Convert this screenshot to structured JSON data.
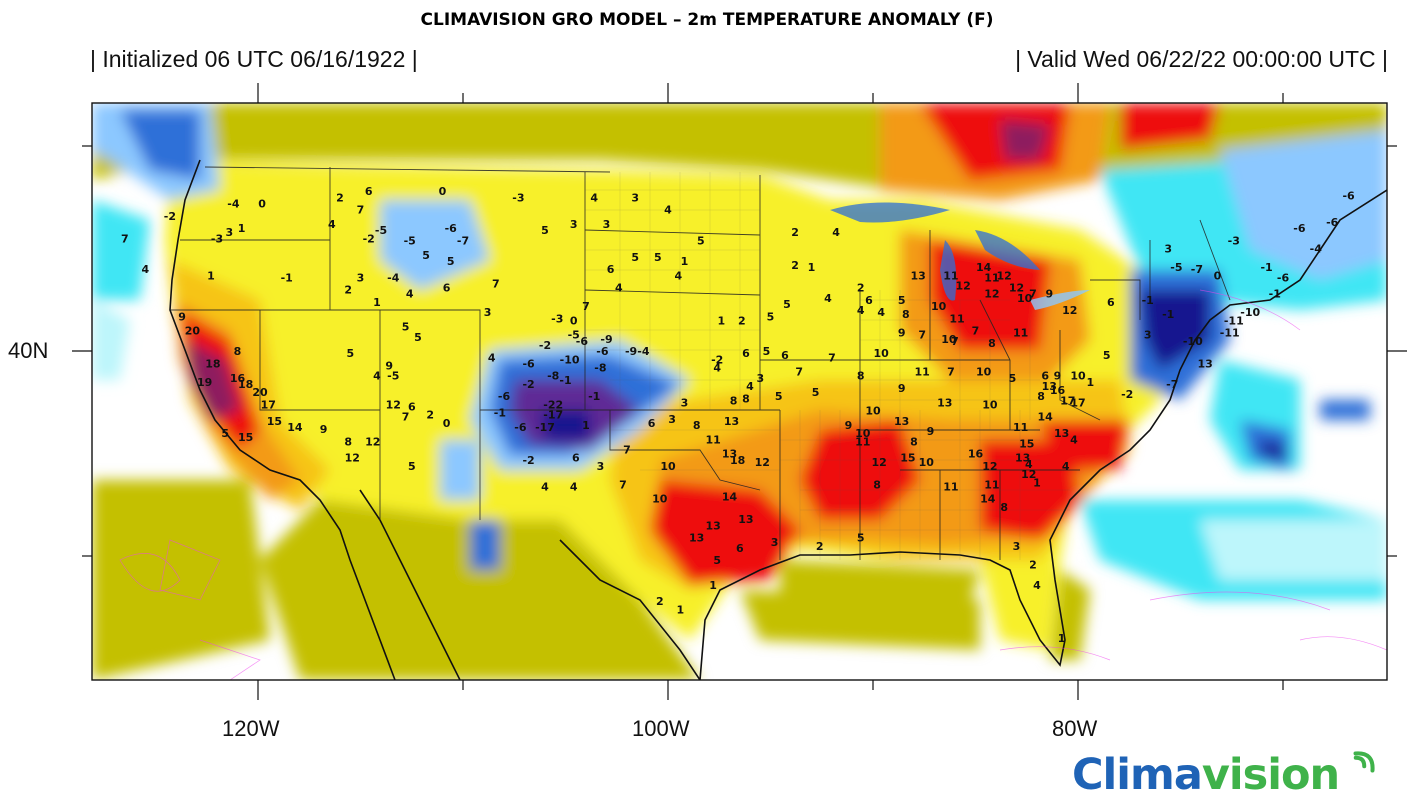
{
  "title": "CLIMAVISION GRO MODEL – 2m TEMPERATURE ANOMALY (F)",
  "header": {
    "initialized": "| Initialized 06 UTC 06/16/1922 |",
    "valid": "| Valid Wed 06/22/22 00:00:00 UTC |"
  },
  "axes": {
    "x_ticks": [
      "120W",
      "100W",
      "80W"
    ],
    "y_ticks": [
      "40N"
    ]
  },
  "logo": {
    "part1": "Clima",
    "part2": "vision"
  },
  "colors": {
    "deep_blue": "#13128f",
    "purple": "#5f2b96",
    "blue": "#2e6fd8",
    "light_blue": "#8cc8ff",
    "cyan": "#3fe6f4",
    "pale_cyan": "#bdf6fb",
    "olive": "#c4c000",
    "yellow": "#f7f02a",
    "gold": "#f6c419",
    "orange": "#f39a14",
    "red": "#ee1111",
    "dark_red": "#8e1f5e",
    "logo_blue": "#1f63b6",
    "logo_green": "#3fb24a"
  },
  "anomaly_labels": [
    {
      "t": "2",
      "lon": -116,
      "lat": 47.3
    },
    {
      "t": "6",
      "lon": -114.6,
      "lat": 47.6
    },
    {
      "t": "0",
      "lon": -111,
      "lat": 47.6
    },
    {
      "t": "-3",
      "lon": -107.3,
      "lat": 47.3
    },
    {
      "t": "4",
      "lon": -103.6,
      "lat": 47.3
    },
    {
      "t": "3",
      "lon": -101.6,
      "lat": 47.3
    },
    {
      "t": "-4",
      "lon": -121.2,
      "lat": 47
    },
    {
      "t": "0",
      "lon": -119.8,
      "lat": 47
    },
    {
      "t": "-2",
      "lon": -124.3,
      "lat": 46.4
    },
    {
      "t": "7",
      "lon": -115,
      "lat": 46.7
    },
    {
      "t": "4",
      "lon": -116.4,
      "lat": 46
    },
    {
      "t": "-5",
      "lon": -114,
      "lat": 45.7
    },
    {
      "t": "-6",
      "lon": -110.6,
      "lat": 45.8
    },
    {
      "t": "-7",
      "lon": -110,
      "lat": 45.2
    },
    {
      "t": "5",
      "lon": -106,
      "lat": 45.7
    },
    {
      "t": "3",
      "lon": -104.6,
      "lat": 46
    },
    {
      "t": "3",
      "lon": -103,
      "lat": 46
    },
    {
      "t": "4",
      "lon": -100,
      "lat": 46.7
    },
    {
      "t": "5",
      "lon": -98.4,
      "lat": 45.2
    },
    {
      "t": "-3",
      "lon": -122,
      "lat": 45.3
    },
    {
      "t": "3",
      "lon": -121.4,
      "lat": 45.6
    },
    {
      "t": "1",
      "lon": -120.8,
      "lat": 45.8
    },
    {
      "t": "-2",
      "lon": -114.6,
      "lat": 45.3
    },
    {
      "t": "-5",
      "lon": -112.6,
      "lat": 45.2
    },
    {
      "t": "7",
      "lon": -126.5,
      "lat": 45.3
    },
    {
      "t": "4",
      "lon": -125.5,
      "lat": 43.8
    },
    {
      "t": "1",
      "lon": -122.3,
      "lat": 43.5
    },
    {
      "t": "-1",
      "lon": -118.6,
      "lat": 43.4
    },
    {
      "t": "3",
      "lon": -115,
      "lat": 43.4
    },
    {
      "t": "-4",
      "lon": -113.4,
      "lat": 43.4
    },
    {
      "t": "5",
      "lon": -111.8,
      "lat": 44.5
    },
    {
      "t": "5",
      "lon": -110.6,
      "lat": 44.2
    },
    {
      "t": "6",
      "lon": -110.8,
      "lat": 42.9
    },
    {
      "t": "7",
      "lon": -108.4,
      "lat": 43.1
    },
    {
      "t": "2",
      "lon": -115.6,
      "lat": 42.8
    },
    {
      "t": "1",
      "lon": -114.2,
      "lat": 42.2
    },
    {
      "t": "4",
      "lon": -112.6,
      "lat": 42.6
    },
    {
      "t": "6",
      "lon": -102.8,
      "lat": 43.8
    },
    {
      "t": "5",
      "lon": -101.6,
      "lat": 44.4
    },
    {
      "t": "5",
      "lon": -100.5,
      "lat": 44.4
    },
    {
      "t": "1",
      "lon": -99.2,
      "lat": 44.2
    },
    {
      "t": "4",
      "lon": -99.5,
      "lat": 43.5
    },
    {
      "t": "4",
      "lon": -102.4,
      "lat": 42.9
    },
    {
      "t": "2",
      "lon": -93.8,
      "lat": 45.6
    },
    {
      "t": "4",
      "lon": -91.8,
      "lat": 45.6
    },
    {
      "t": "2",
      "lon": -93.8,
      "lat": 44
    },
    {
      "t": "1",
      "lon": -93,
      "lat": 43.9
    },
    {
      "t": "5",
      "lon": -88.6,
      "lat": 42.3
    },
    {
      "t": "5",
      "lon": -94.2,
      "lat": 42.1
    },
    {
      "t": "4",
      "lon": -92.2,
      "lat": 42.4
    },
    {
      "t": "2",
      "lon": -90.6,
      "lat": 42.9
    },
    {
      "t": "6",
      "lon": -90.2,
      "lat": 42.3
    },
    {
      "t": "4",
      "lon": -90.6,
      "lat": 41.8
    },
    {
      "t": "4",
      "lon": -89.6,
      "lat": 41.7
    },
    {
      "t": "1",
      "lon": -97.4,
      "lat": 41.3
    },
    {
      "t": "2",
      "lon": -96.4,
      "lat": 41.3
    },
    {
      "t": "5",
      "lon": -95,
      "lat": 41.5
    },
    {
      "t": "7",
      "lon": -104,
      "lat": 42
    },
    {
      "t": "3",
      "lon": -108.8,
      "lat": 41.7
    },
    {
      "t": "-3",
      "lon": -105.4,
      "lat": 41.4
    },
    {
      "t": "0",
      "lon": -104.6,
      "lat": 41.3
    },
    {
      "t": "9",
      "lon": -123.7,
      "lat": 41.5
    },
    {
      "t": "20",
      "lon": -123.2,
      "lat": 40.8
    },
    {
      "t": "8",
      "lon": -121,
      "lat": 39.8
    },
    {
      "t": "5",
      "lon": -115.5,
      "lat": 39.7
    },
    {
      "t": "5",
      "lon": -112.8,
      "lat": 41
    },
    {
      "t": "5",
      "lon": -112.2,
      "lat": 40.5
    },
    {
      "t": "-5",
      "lon": -104.6,
      "lat": 40.6
    },
    {
      "t": "-6",
      "lon": -104.2,
      "lat": 40.3
    },
    {
      "t": "-9",
      "lon": -103,
      "lat": 40.4
    },
    {
      "t": "-6",
      "lon": -103.2,
      "lat": 39.8
    },
    {
      "t": "-9",
      "lon": -101.8,
      "lat": 39.8
    },
    {
      "t": "-4",
      "lon": -101.2,
      "lat": 39.8
    },
    {
      "t": "-2",
      "lon": -106,
      "lat": 40.1
    },
    {
      "t": "-10",
      "lon": -104.8,
      "lat": 39.4
    },
    {
      "t": "-8",
      "lon": -103.3,
      "lat": 39
    },
    {
      "t": "4",
      "lon": -108.6,
      "lat": 39.5
    },
    {
      "t": "-6",
      "lon": -106.8,
      "lat": 39.2
    },
    {
      "t": "9",
      "lon": -113.6,
      "lat": 39.1
    },
    {
      "t": "4",
      "lon": -114.2,
      "lat": 38.6
    },
    {
      "t": "-5",
      "lon": -113.4,
      "lat": 38.6
    },
    {
      "t": "18",
      "lon": -122.2,
      "lat": 39.2
    },
    {
      "t": "16",
      "lon": -121,
      "lat": 38.5
    },
    {
      "t": "19",
      "lon": -122.6,
      "lat": 38.3
    },
    {
      "t": "18",
      "lon": -120.6,
      "lat": 38.2
    },
    {
      "t": "20",
      "lon": -119.9,
      "lat": 37.8
    },
    {
      "t": "17",
      "lon": -119.5,
      "lat": 37.2
    },
    {
      "t": "15",
      "lon": -119.2,
      "lat": 36.4
    },
    {
      "t": "14",
      "lon": -118.2,
      "lat": 36.1
    },
    {
      "t": "9",
      "lon": -116.8,
      "lat": 36
    },
    {
      "t": "5",
      "lon": -121.6,
      "lat": 35.8
    },
    {
      "t": "15",
      "lon": -120.6,
      "lat": 35.6
    },
    {
      "t": "12",
      "lon": -113.4,
      "lat": 37.2
    },
    {
      "t": "7",
      "lon": -112.8,
      "lat": 36.6
    },
    {
      "t": "6",
      "lon": -112.5,
      "lat": 37.1
    },
    {
      "t": "2",
      "lon": -111.6,
      "lat": 36.7
    },
    {
      "t": "0",
      "lon": -110.8,
      "lat": 36.3
    },
    {
      "t": "12",
      "lon": -114.4,
      "lat": 35.4
    },
    {
      "t": "8",
      "lon": -115.6,
      "lat": 35.4
    },
    {
      "t": "12",
      "lon": -115.4,
      "lat": 34.6
    },
    {
      "t": "5",
      "lon": -112.5,
      "lat": 34.2
    },
    {
      "t": "-6",
      "lon": -108,
      "lat": 37.6
    },
    {
      "t": "-1",
      "lon": -108.2,
      "lat": 36.8
    },
    {
      "t": "-6",
      "lon": -107.2,
      "lat": 36.1
    },
    {
      "t": "-17",
      "lon": -106,
      "lat": 36.1
    },
    {
      "t": "-17",
      "lon": -105.6,
      "lat": 36.7
    },
    {
      "t": "-22",
      "lon": -105.6,
      "lat": 37.2
    },
    {
      "t": "-2",
      "lon": -106.8,
      "lat": 38.2
    },
    {
      "t": "-8",
      "lon": -105.6,
      "lat": 38.6
    },
    {
      "t": "-1",
      "lon": -105,
      "lat": 38.4
    },
    {
      "t": "-1",
      "lon": -103.6,
      "lat": 37.6
    },
    {
      "t": "1",
      "lon": -104,
      "lat": 36.2
    },
    {
      "t": "6",
      "lon": -104.5,
      "lat": 34.6
    },
    {
      "t": "3",
      "lon": -103.3,
      "lat": 34.2
    },
    {
      "t": "-2",
      "lon": -106.8,
      "lat": 34.5
    },
    {
      "t": "4",
      "lon": -106,
      "lat": 33.2
    },
    {
      "t": "4",
      "lon": -104.6,
      "lat": 33.2
    },
    {
      "t": "7",
      "lon": -102.2,
      "lat": 33.3
    },
    {
      "t": "7",
      "lon": -102,
      "lat": 35
    },
    {
      "t": "10",
      "lon": -100.4,
      "lat": 32.6
    },
    {
      "t": "10",
      "lon": -100,
      "lat": 34.2
    },
    {
      "t": "14",
      "lon": -97,
      "lat": 32.7
    },
    {
      "t": "13",
      "lon": -97.8,
      "lat": 31.3
    },
    {
      "t": "13",
      "lon": -96.2,
      "lat": 31.6
    },
    {
      "t": "13",
      "lon": -98.6,
      "lat": 30.7
    },
    {
      "t": "12",
      "lon": -95.4,
      "lat": 34.4
    },
    {
      "t": "18",
      "lon": -96.6,
      "lat": 34.5
    },
    {
      "t": "13",
      "lon": -97,
      "lat": 34.8
    },
    {
      "t": "8",
      "lon": -98.6,
      "lat": 36.2
    },
    {
      "t": "6",
      "lon": -100.8,
      "lat": 36.3
    },
    {
      "t": "3",
      "lon": -99.8,
      "lat": 36.5
    },
    {
      "t": "3",
      "lon": -99.2,
      "lat": 37.3
    },
    {
      "t": "11",
      "lon": -97.8,
      "lat": 35.5
    },
    {
      "t": "13",
      "lon": -96.9,
      "lat": 36.4
    },
    {
      "t": "8",
      "lon": -96.8,
      "lat": 37.4
    },
    {
      "t": "8",
      "lon": -96.2,
      "lat": 37.5
    },
    {
      "t": "4",
      "lon": -96,
      "lat": 38.1
    },
    {
      "t": "7",
      "lon": -93.6,
      "lat": 38.8
    },
    {
      "t": "5",
      "lon": -92.8,
      "lat": 37.8
    },
    {
      "t": "5",
      "lon": -94.6,
      "lat": 37.6
    },
    {
      "t": "3",
      "lon": -95.5,
      "lat": 38.5
    },
    {
      "t": "6",
      "lon": -96.2,
      "lat": 39.7
    },
    {
      "t": "5",
      "lon": -95.2,
      "lat": 39.8
    },
    {
      "t": "6",
      "lon": -94.3,
      "lat": 39.6
    },
    {
      "t": "4",
      "lon": -97.6,
      "lat": 39
    },
    {
      "t": "-2",
      "lon": -97.6,
      "lat": 39.4
    },
    {
      "t": "7",
      "lon": -92,
      "lat": 39.5
    },
    {
      "t": "8",
      "lon": -90.6,
      "lat": 38.6
    },
    {
      "t": "10",
      "lon": -89.6,
      "lat": 39.7
    },
    {
      "t": "11",
      "lon": -87.6,
      "lat": 38.8
    },
    {
      "t": "7",
      "lon": -86.2,
      "lat": 38.8
    },
    {
      "t": "10",
      "lon": -84.6,
      "lat": 38.8
    },
    {
      "t": "5",
      "lon": -83.2,
      "lat": 38.5
    },
    {
      "t": "9",
      "lon": -88.6,
      "lat": 38
    },
    {
      "t": "10",
      "lon": -90,
      "lat": 36.9
    },
    {
      "t": "13",
      "lon": -88.6,
      "lat": 36.4
    },
    {
      "t": "13",
      "lon": -86.5,
      "lat": 37.3
    },
    {
      "t": "10",
      "lon": -84.3,
      "lat": 37.2
    },
    {
      "t": "9",
      "lon": -91.2,
      "lat": 36.2
    },
    {
      "t": "10",
      "lon": -90.5,
      "lat": 35.8
    },
    {
      "t": "11",
      "lon": -90.5,
      "lat": 35.4
    },
    {
      "t": "12",
      "lon": -89.7,
      "lat": 34.4
    },
    {
      "t": "15",
      "lon": -88.3,
      "lat": 34.6
    },
    {
      "t": "10",
      "lon": -87.4,
      "lat": 34.4
    },
    {
      "t": "8",
      "lon": -89.8,
      "lat": 33.3
    },
    {
      "t": "9",
      "lon": -87.2,
      "lat": 35.9
    },
    {
      "t": "8",
      "lon": -88,
      "lat": 35.4
    },
    {
      "t": "11",
      "lon": -86.2,
      "lat": 33.2
    },
    {
      "t": "11",
      "lon": -84.2,
      "lat": 33.3
    },
    {
      "t": "12",
      "lon": -84.3,
      "lat": 34.2
    },
    {
      "t": "16",
      "lon": -85,
      "lat": 34.8
    },
    {
      "t": "15",
      "lon": -82.5,
      "lat": 35.3
    },
    {
      "t": "13",
      "lon": -82.7,
      "lat": 34.6
    },
    {
      "t": "12",
      "lon": -82.4,
      "lat": 33.8
    },
    {
      "t": "14",
      "lon": -84.4,
      "lat": 32.6
    },
    {
      "t": "8",
      "lon": -83.6,
      "lat": 32.2
    },
    {
      "t": "14",
      "lon": -81.6,
      "lat": 36.6
    },
    {
      "t": "11",
      "lon": -82.8,
      "lat": 36.1
    },
    {
      "t": "17",
      "lon": -80.5,
      "lat": 37.4
    },
    {
      "t": "16",
      "lon": -81,
      "lat": 37.9
    },
    {
      "t": "17",
      "lon": -80,
      "lat": 37.3
    },
    {
      "t": "10",
      "lon": -80,
      "lat": 38.6
    },
    {
      "t": "9",
      "lon": -81,
      "lat": 38.6
    },
    {
      "t": "13",
      "lon": -81.4,
      "lat": 38.1
    },
    {
      "t": "6",
      "lon": -81.6,
      "lat": 38.6
    },
    {
      "t": "8",
      "lon": -81.8,
      "lat": 37.6
    },
    {
      "t": "1",
      "lon": -79.4,
      "lat": 38.3
    },
    {
      "t": "13",
      "lon": -80.8,
      "lat": 35.8
    },
    {
      "t": "4",
      "lon": -82.4,
      "lat": 34.3
    },
    {
      "t": "4",
      "lon": -80.6,
      "lat": 34.2
    },
    {
      "t": "4",
      "lon": -80.2,
      "lat": 35.5
    },
    {
      "t": "1",
      "lon": -82,
      "lat": 33.4
    },
    {
      "t": "13",
      "lon": -87.8,
      "lat": 43.5
    },
    {
      "t": "14",
      "lon": -84.6,
      "lat": 43.9
    },
    {
      "t": "11",
      "lon": -84.2,
      "lat": 43.4
    },
    {
      "t": "12",
      "lon": -83.6,
      "lat": 43.5
    },
    {
      "t": "12",
      "lon": -84.2,
      "lat": 42.6
    },
    {
      "t": "12",
      "lon": -83,
      "lat": 42.9
    },
    {
      "t": "7",
      "lon": -82.2,
      "lat": 42.6
    },
    {
      "t": "10",
      "lon": -82.6,
      "lat": 42.4
    },
    {
      "t": "9",
      "lon": -81.4,
      "lat": 42.6
    },
    {
      "t": "12",
      "lon": -80.4,
      "lat": 41.8
    },
    {
      "t": "11",
      "lon": -86.2,
      "lat": 43.5
    },
    {
      "t": "12",
      "lon": -85.6,
      "lat": 43
    },
    {
      "t": "11",
      "lon": -85.9,
      "lat": 41.4
    },
    {
      "t": "10",
      "lon": -86.8,
      "lat": 42
    },
    {
      "t": "7",
      "lon": -85,
      "lat": 40.8
    },
    {
      "t": "10",
      "lon": -86.3,
      "lat": 40.4
    },
    {
      "t": "7",
      "lon": -86,
      "lat": 40.3
    },
    {
      "t": "11",
      "lon": -82.8,
      "lat": 40.7
    },
    {
      "t": "8",
      "lon": -84.2,
      "lat": 40.2
    },
    {
      "t": "8",
      "lon": -88.4,
      "lat": 41.6
    },
    {
      "t": "9",
      "lon": -88.6,
      "lat": 40.7
    },
    {
      "t": "7",
      "lon": -87.6,
      "lat": 40.6
    },
    {
      "t": "-1",
      "lon": -76.6,
      "lat": 42.3
    },
    {
      "t": "-5",
      "lon": -75.2,
      "lat": 43.9
    },
    {
      "t": "-7",
      "lon": -74.2,
      "lat": 43.8
    },
    {
      "t": "3",
      "lon": -75.6,
      "lat": 44.8
    },
    {
      "t": "-10",
      "lon": -71.6,
      "lat": 41.7
    },
    {
      "t": "-11",
      "lon": -72.4,
      "lat": 41.3
    },
    {
      "t": "-11",
      "lon": -72.6,
      "lat": 40.7
    },
    {
      "t": "-10",
      "lon": -74.4,
      "lat": 40.3
    },
    {
      "t": "-1",
      "lon": -75.6,
      "lat": 41.6
    },
    {
      "t": "-1",
      "lon": -70.4,
      "lat": 42.6
    },
    {
      "t": "-6",
      "lon": -70,
      "lat": 43.4
    },
    {
      "t": "-4",
      "lon": -68.4,
      "lat": 44.8
    },
    {
      "t": "-6",
      "lon": -67.6,
      "lat": 46.1
    },
    {
      "t": "-6",
      "lon": -69.2,
      "lat": 45.8
    },
    {
      "t": "-6",
      "lon": -66.8,
      "lat": 47.4
    },
    {
      "t": "-3",
      "lon": -72.4,
      "lat": 45.2
    },
    {
      "t": "-1",
      "lon": -70.8,
      "lat": 43.9
    },
    {
      "t": "0",
      "lon": -73.2,
      "lat": 43.5
    },
    {
      "t": "6",
      "lon": -78.4,
      "lat": 42.2
    },
    {
      "t": "3",
      "lon": -76.6,
      "lat": 40.6
    },
    {
      "t": "5",
      "lon": -78.6,
      "lat": 39.6
    },
    {
      "t": "13",
      "lon": -73.8,
      "lat": 39.2
    },
    {
      "t": "-2",
      "lon": -77.6,
      "lat": 37.7
    },
    {
      "t": "-7",
      "lon": -75.4,
      "lat": 38.2
    },
    {
      "t": "5",
      "lon": -90.6,
      "lat": 30.7
    },
    {
      "t": "2",
      "lon": -92.6,
      "lat": 30.3
    },
    {
      "t": "3",
      "lon": -94.8,
      "lat": 30.5
    },
    {
      "t": "6",
      "lon": -96.5,
      "lat": 30.2
    },
    {
      "t": "5",
      "lon": -97.6,
      "lat": 29.6
    },
    {
      "t": "1",
      "lon": -97.8,
      "lat": 28.4
    },
    {
      "t": "1",
      "lon": -99.4,
      "lat": 27.2
    },
    {
      "t": "2",
      "lon": -100.4,
      "lat": 27.6
    },
    {
      "t": "3",
      "lon": -83,
      "lat": 30.3
    },
    {
      "t": "2",
      "lon": -82.2,
      "lat": 29.4
    },
    {
      "t": "4",
      "lon": -82,
      "lat": 28.4
    },
    {
      "t": "1",
      "lon": -80.8,
      "lat": 25.8
    }
  ]
}
